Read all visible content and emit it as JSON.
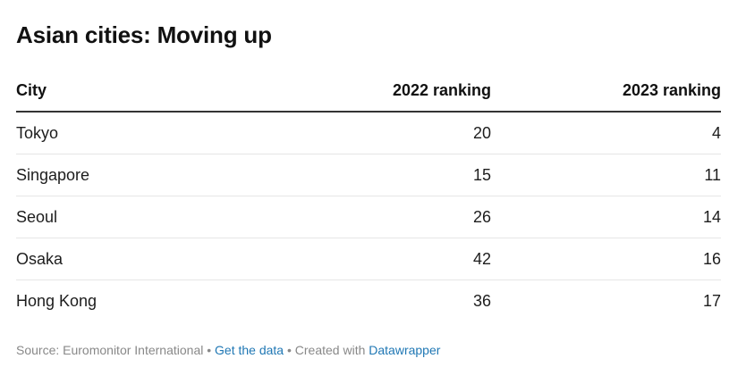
{
  "chart_data": {
    "type": "table",
    "title": "Asian cities: Moving up",
    "columns": [
      "City",
      "2022 ranking",
      "2023 ranking"
    ],
    "rows": [
      {
        "city": "Tokyo",
        "rank_2022": "20",
        "rank_2023": "4"
      },
      {
        "city": "Singapore",
        "rank_2022": "15",
        "rank_2023": "11"
      },
      {
        "city": "Seoul",
        "rank_2022": "26",
        "rank_2023": "14"
      },
      {
        "city": "Osaka",
        "rank_2022": "42",
        "rank_2023": "16"
      },
      {
        "city": "Hong Kong",
        "rank_2022": "36",
        "rank_2023": "17"
      }
    ]
  },
  "footer": {
    "source": "Source: Euromonitor International",
    "separator": "•",
    "get_data": "Get the data",
    "created_with": "Created with",
    "tool": "Datawrapper"
  },
  "colors": {
    "link": "#1f77b4",
    "footer_text": "#888888",
    "header_rule": "#333333",
    "row_rule": "#e6e6e6"
  }
}
